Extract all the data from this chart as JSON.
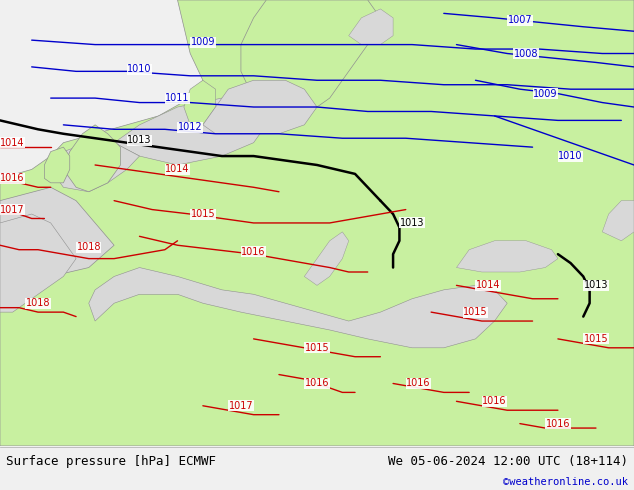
{
  "title_left": "Surface pressure [hPa] ECMWF",
  "title_right": "We 05-06-2024 12:00 UTC (18+114)",
  "credit": "©weatheronline.co.uk",
  "bg_color": "#d0d0d0",
  "land_color": "#c8f0a0",
  "sea_color": "#d8d8d8",
  "blue_color": "#0000cc",
  "red_color": "#cc0000",
  "black_color": "#000000",
  "coast_color": "#909090",
  "footer_bg": "#f0f0f0",
  "figsize": [
    6.34,
    4.9
  ],
  "dpi": 100
}
